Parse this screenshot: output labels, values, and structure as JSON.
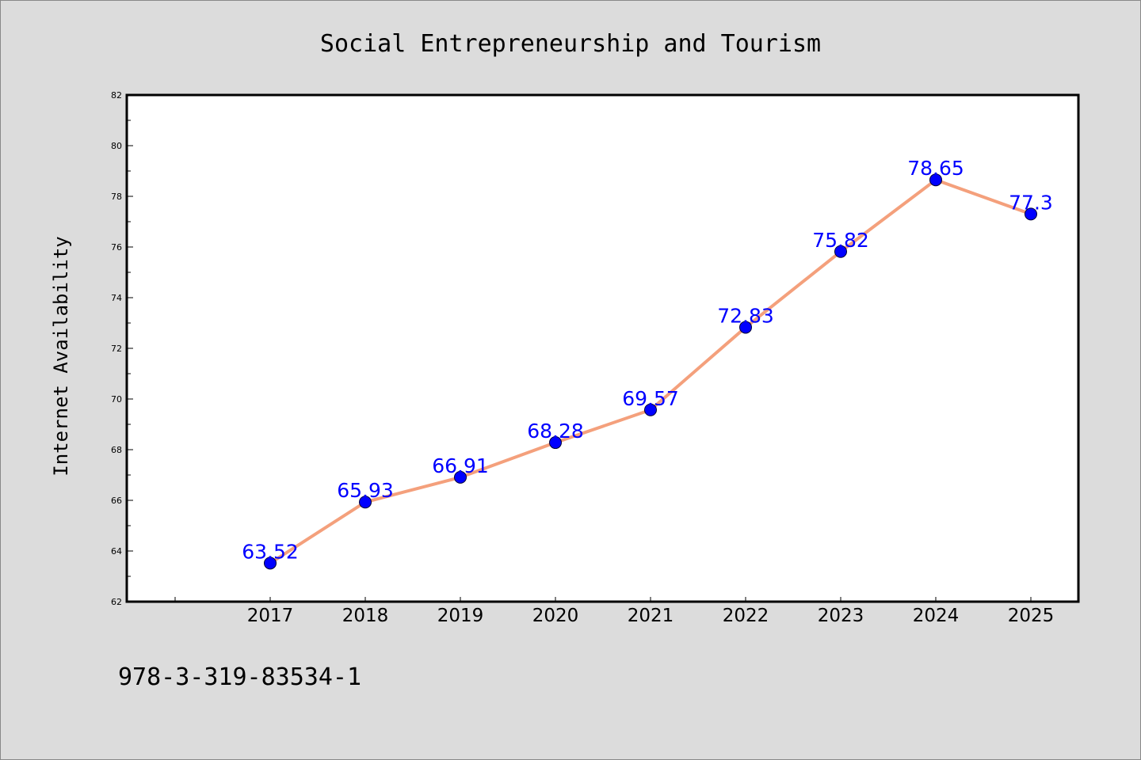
{
  "chart_data": {
    "type": "line",
    "title": "Social Entrepreneurship and Tourism",
    "xlabel": "",
    "ylabel": "Internet Availability",
    "categories": [
      "2017",
      "2018",
      "2019",
      "2020",
      "2021",
      "2022",
      "2023",
      "2024",
      "2025"
    ],
    "series": [
      {
        "values": [
          63.52,
          65.93,
          66.91,
          68.28,
          69.57,
          72.83,
          75.82,
          78.65,
          77.3
        ],
        "line_color": "#f4a07c",
        "marker_color": "#0000ff"
      }
    ],
    "data_labels": [
      "63.52",
      "65.93",
      "66.91",
      "68.28",
      "69.57",
      "72.83",
      "75.82",
      "78.65",
      "77.3"
    ],
    "ylim": [
      62,
      82
    ],
    "yticks": [
      "62",
      "64",
      "66",
      "68",
      "70",
      "72",
      "74",
      "76",
      "78",
      "80",
      "82"
    ],
    "grid": false,
    "legend": "none"
  },
  "footer": {
    "text": "978-3-319-83534-1"
  },
  "colors": {
    "background": "#dcdcdc",
    "plot_area": "#ffffff",
    "data_label": "#0000ff"
  }
}
